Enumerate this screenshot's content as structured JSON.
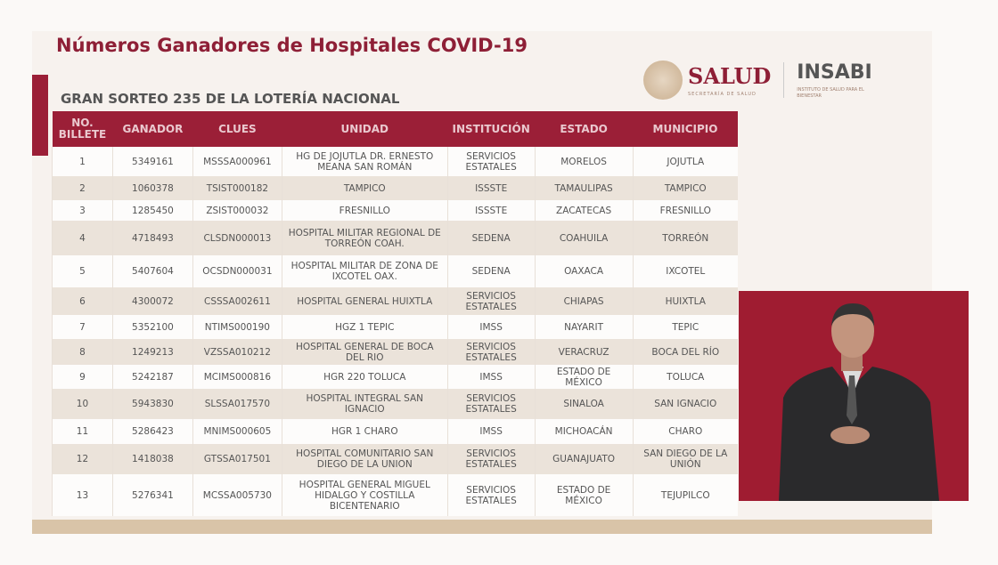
{
  "title": "Números Ganadores de Hospitales COVID-19",
  "subtitle": "GRAN SORTEO 235 DE LA LOTERÍA NACIONAL",
  "logos": {
    "salud": "SALUD",
    "salud_sub": "SECRETARÍA DE SALUD",
    "insabi": "INSABI",
    "insabi_sub": "INSTITUTO DE SALUD PARA EL BIENESTAR"
  },
  "colors": {
    "accent": "#9b1f37",
    "band": "#d9c4a8"
  },
  "table": {
    "headers": [
      "NO. BILLETE",
      "GANADOR",
      "CLUES",
      "UNIDAD",
      "INSTITUCIÓN",
      "ESTADO",
      "MUNICIPIO"
    ],
    "rows": [
      [
        "1",
        "5349161",
        "MSSSA000961",
        "HG DE JOJUTLA DR. ERNESTO MEANA SAN ROMÁN",
        "SERVICIOS ESTATALES",
        "MORELOS",
        "JOJUTLA"
      ],
      [
        "2",
        "1060378",
        "TSIST000182",
        "TAMPICO",
        "ISSSTE",
        "TAMAULIPAS",
        "TAMPICO"
      ],
      [
        "3",
        "1285450",
        "ZSIST000032",
        "FRESNILLO",
        "ISSSTE",
        "ZACATECAS",
        "FRESNILLO"
      ],
      [
        "4",
        "4718493",
        "CLSDN000013",
        "HOSPITAL MILITAR REGIONAL DE TORREÓN COAH.",
        "SEDENA",
        "COAHUILA",
        "TORREÓN"
      ],
      [
        "5",
        "5407604",
        "OCSDN000031",
        "HOSPITAL MILITAR DE ZONA DE IXCOTEL OAX.",
        "SEDENA",
        "OAXACA",
        "IXCOTEL"
      ],
      [
        "6",
        "4300072",
        "CSSSA002611",
        "HOSPITAL GENERAL HUIXTLA",
        "SERVICIOS ESTATALES",
        "CHIAPAS",
        "HUIXTLA"
      ],
      [
        "7",
        "5352100",
        "NTIMS000190",
        "HGZ 1 TEPIC",
        "IMSS",
        "NAYARIT",
        "TEPIC"
      ],
      [
        "8",
        "1249213",
        "VZSSA010212",
        "HOSPITAL GENERAL DE BOCA DEL RIO",
        "SERVICIOS ESTATALES",
        "VERACRUZ",
        "BOCA DEL RÍO"
      ],
      [
        "9",
        "5242187",
        "MCIMS000816",
        "HGR 220 TOLUCA",
        "IMSS",
        "ESTADO DE MÉXICO",
        "TOLUCA"
      ],
      [
        "10",
        "5943830",
        "SLSSA017570",
        "HOSPITAL INTEGRAL SAN IGNACIO",
        "SERVICIOS ESTATALES",
        "SINALOA",
        "SAN IGNACIO"
      ],
      [
        "11",
        "5286423",
        "MNIMS000605",
        "HGR 1 CHARO",
        "IMSS",
        "MICHOACÁN",
        "CHARO"
      ],
      [
        "12",
        "1418038",
        "GTSSA017501",
        "HOSPITAL COMUNITARIO SAN DIEGO DE LA UNION",
        "SERVICIOS ESTATALES",
        "GUANAJUATO",
        "SAN DIEGO DE LA UNIÓN"
      ],
      [
        "13",
        "5276341",
        "MCSSA005730",
        "HOSPITAL GENERAL MIGUEL HIDALGO Y COSTILLA BICENTENARIO",
        "SERVICIOS ESTATALES",
        "ESTADO DE MÉXICO",
        "TEJUPILCO"
      ]
    ]
  }
}
